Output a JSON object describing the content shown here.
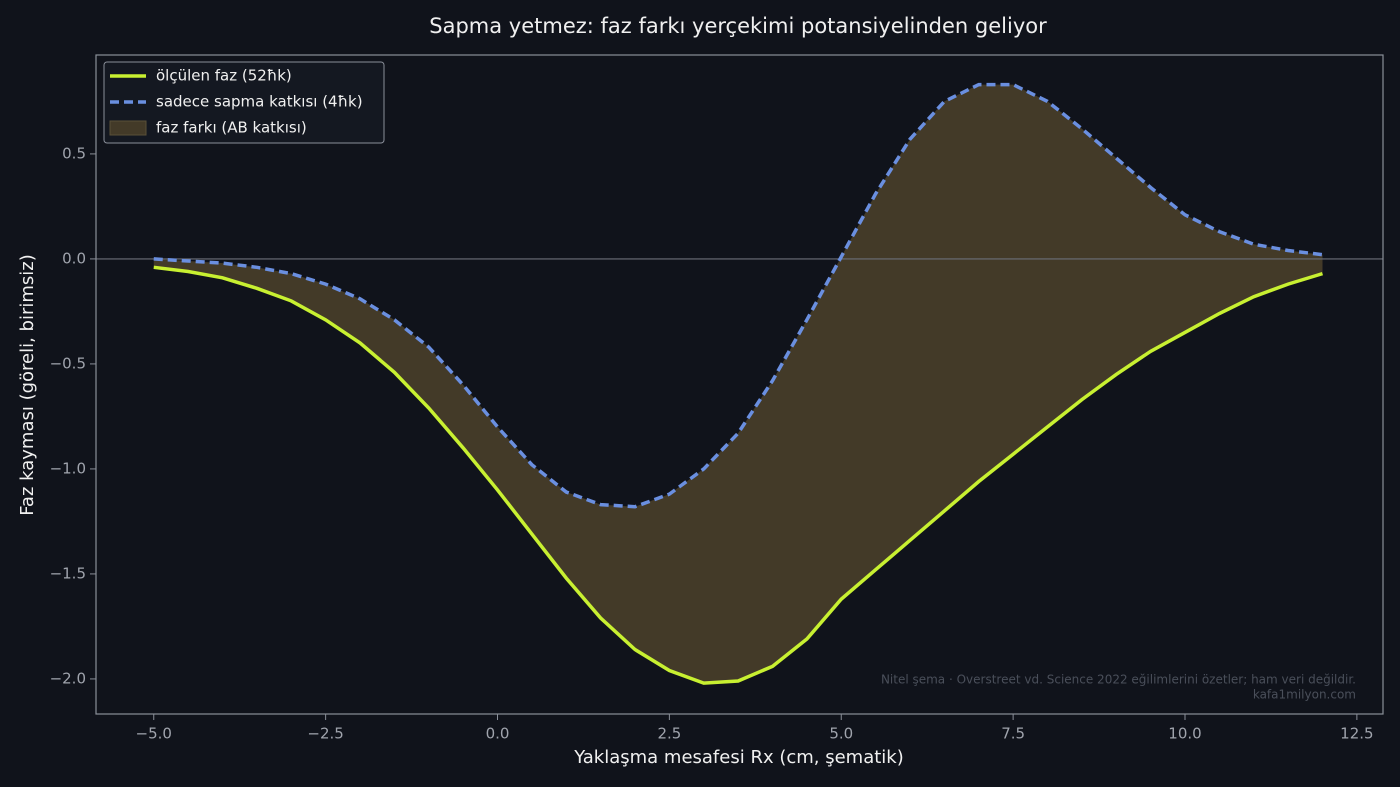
{
  "chart_data": {
    "type": "line",
    "title": "Sapma yetmez: faz farkı yerçekimi potansiyelinden geliyor",
    "xlabel": "Yaklaşma mesafesi Rx (cm, şematik)",
    "ylabel": "Faz kayması (göreli, birimsiz)",
    "x": [
      -5,
      -4.5,
      -4,
      -3.5,
      -3,
      -2.5,
      -2,
      -1.5,
      -1,
      -0.5,
      0,
      0.5,
      1,
      1.5,
      2,
      2.5,
      3,
      3.5,
      4,
      4.5,
      5,
      5.5,
      6,
      6.5,
      7,
      7.5,
      8,
      8.5,
      9,
      9.5,
      10,
      10.5,
      11,
      11.5,
      12
    ],
    "series": [
      {
        "name": "ölçülen faz (52ħk)",
        "color": "#c8f031",
        "dash": false,
        "values": [
          -0.04,
          -0.06,
          -0.09,
          -0.14,
          -0.2,
          -0.29,
          -0.4,
          -0.54,
          -0.71,
          -0.9,
          -1.1,
          -1.31,
          -1.52,
          -1.71,
          -1.86,
          -1.96,
          -2.02,
          -2.01,
          -1.94,
          -1.81,
          -1.62,
          -1.48,
          -1.34,
          -1.2,
          -1.06,
          -0.93,
          -0.8,
          -0.67,
          -0.55,
          -0.44,
          -0.35,
          -0.26,
          -0.18,
          -0.12,
          -0.07
        ]
      },
      {
        "name": "sadece sapma katkısı (4ħk)",
        "color": "#6a8fe0",
        "dash": true,
        "values": [
          0.0,
          -0.01,
          -0.02,
          -0.04,
          -0.07,
          -0.12,
          -0.19,
          -0.29,
          -0.42,
          -0.6,
          -0.8,
          -0.98,
          -1.11,
          -1.17,
          -1.18,
          -1.12,
          -1.0,
          -0.83,
          -0.58,
          -0.29,
          0.01,
          0.31,
          0.57,
          0.75,
          0.83,
          0.83,
          0.75,
          0.62,
          0.48,
          0.34,
          0.21,
          0.13,
          0.07,
          0.04,
          0.02
        ]
      }
    ],
    "fill_between": {
      "name": "faz farkı (AB katkısı)",
      "color": "#433a28"
    },
    "hline": 0,
    "xlim": [
      -5.84,
      12.88
    ],
    "ylim": [
      -2.167,
      0.971
    ],
    "xticks": [
      {
        "value": -5,
        "label": "−5.0"
      },
      {
        "value": -2.5,
        "label": "−2.5"
      },
      {
        "value": 0,
        "label": "0.0"
      },
      2.5,
      {
        "value": 5,
        "label": "5.0"
      },
      7.5,
      {
        "value": 10,
        "label": "10.0"
      },
      12.5
    ],
    "yticks": [
      0.5,
      {
        "value": 0,
        "label": "0.0"
      },
      {
        "value": -0.5,
        "label": "−0.5"
      },
      {
        "value": -1,
        "label": "−1.0"
      },
      {
        "value": -1.5,
        "label": "−1.5"
      },
      {
        "value": -2,
        "label": "−2.0"
      }
    ],
    "grid": false,
    "legend": "upper-left",
    "annotations": [
      "Nitel şema · Overstreet vd. Science 2022 eğilimlerini özetler; ham veri değildir.",
      "kafa1milyon.com"
    ]
  }
}
